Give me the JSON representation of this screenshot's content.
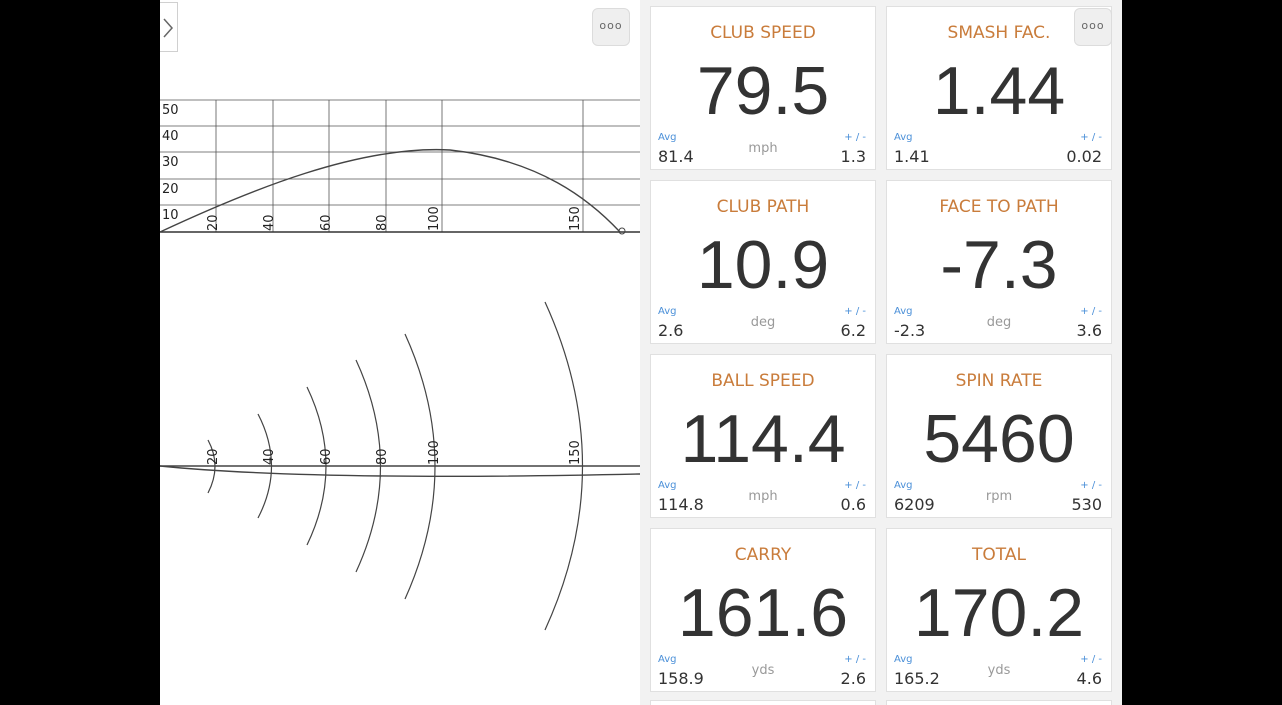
{
  "left_panel": {
    "expand_icon": "chevron-right-icon",
    "more_icon": "more-dots-icon",
    "height_ticks": [
      "10",
      "20",
      "30",
      "40",
      "50"
    ],
    "distance_ticks": [
      "20",
      "40",
      "60",
      "80",
      "100",
      "150"
    ],
    "arc_ticks": [
      "20",
      "40",
      "60",
      "80",
      "100",
      "150"
    ]
  },
  "right_panel": {
    "more_icon": "more-dots-icon",
    "cards": [
      {
        "title": "CLUB SPEED",
        "value": "79.5",
        "avg_label": "Avg",
        "avg": "81.4",
        "unit": "mph",
        "pm_label": "+ / -",
        "sd": "1.3"
      },
      {
        "title": "SMASH FAC.",
        "value": "1.44",
        "avg_label": "Avg",
        "avg": "1.41",
        "unit": "",
        "pm_label": "+ / -",
        "sd": "0.02"
      },
      {
        "title": "CLUB PATH",
        "value": "10.9",
        "avg_label": "Avg",
        "avg": "2.6",
        "unit": "deg",
        "pm_label": "+ / -",
        "sd": "6.2"
      },
      {
        "title": "FACE TO PATH",
        "value": "-7.3",
        "avg_label": "Avg",
        "avg": "-2.3",
        "unit": "deg",
        "pm_label": "+ / -",
        "sd": "3.6"
      },
      {
        "title": "BALL SPEED",
        "value": "114.4",
        "avg_label": "Avg",
        "avg": "114.8",
        "unit": "mph",
        "pm_label": "+ / -",
        "sd": "0.6"
      },
      {
        "title": "SPIN RATE",
        "value": "5460",
        "avg_label": "Avg",
        "avg": "6209",
        "unit": "rpm",
        "pm_label": "+ / -",
        "sd": "530"
      },
      {
        "title": "CARRY",
        "value": "161.6",
        "avg_label": "Avg",
        "avg": "158.9",
        "unit": "yds",
        "pm_label": "+ / -",
        "sd": "2.6"
      },
      {
        "title": "TOTAL",
        "value": "170.2",
        "avg_label": "Avg",
        "avg": "165.2",
        "unit": "yds",
        "pm_label": "+ / -",
        "sd": "4.6"
      }
    ]
  },
  "colors": {
    "title": "#c97c3b",
    "avg_label": "#4a8fd8",
    "value": "#333333",
    "panel_bg": "#f2f2f2"
  }
}
